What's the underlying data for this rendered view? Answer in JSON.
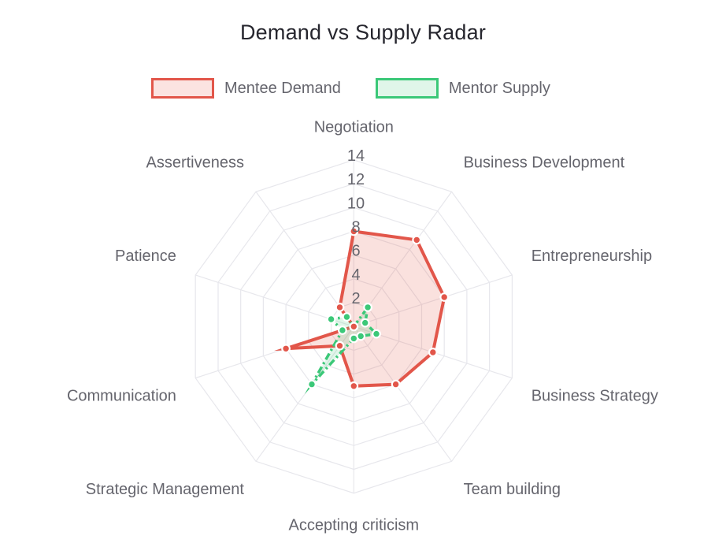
{
  "title": "Demand vs Supply Radar",
  "legend": {
    "position": "top",
    "items": [
      {
        "label": "Mentee Demand",
        "line_color": "#E2564A",
        "fill_color": "#FBE3E1"
      },
      {
        "label": "Mentor Supply",
        "line_color": "#3BC878",
        "fill_color": "#E0F6E9"
      }
    ]
  },
  "chart_data": {
    "type": "radar",
    "categories": [
      "Negotiation",
      "Business Development",
      "Entrepreneurship",
      "Business Strategy",
      "Team building",
      "Accepting criticism",
      "Strategic Management",
      "Communication",
      "Patience",
      "Assertiveness"
    ],
    "series": [
      {
        "name": "Mentee Demand",
        "values": [
          8,
          9,
          8,
          7,
          6,
          5,
          2,
          6,
          0,
          2
        ],
        "line_color": "#E2564A",
        "fill_color": "rgba(226,86,74,0.18)",
        "line_style": "solid",
        "line_width": 4
      },
      {
        "name": "Mentor Supply",
        "values": [
          0,
          2,
          1,
          2,
          1,
          1,
          6,
          1,
          2,
          1
        ],
        "line_color": "#3BC878",
        "fill_color": "rgba(60,200,120,0.16)",
        "line_style": "dashdot",
        "line_width": 3.5
      }
    ],
    "radial_ticks": [
      2,
      4,
      6,
      8,
      10,
      12,
      14
    ],
    "rmin": 0,
    "rmax": 14,
    "grid_on": true,
    "grid_shape": "polygon",
    "grid_color": "#e7e7ec",
    "tick_label_color": "#65656d",
    "axis_label_color": "#65656d",
    "background_color": "#ffffff"
  }
}
